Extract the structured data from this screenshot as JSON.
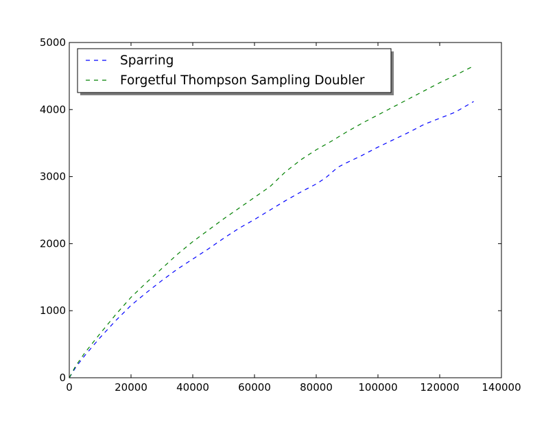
{
  "chart_data": {
    "type": "line",
    "title": "",
    "xlabel": "",
    "ylabel": "",
    "xlim": [
      0,
      140000
    ],
    "ylim": [
      0,
      5000
    ],
    "xticks": [
      0,
      20000,
      40000,
      60000,
      80000,
      100000,
      120000,
      140000
    ],
    "yticks": [
      0,
      1000,
      2000,
      3000,
      4000,
      5000
    ],
    "xtick_labels": [
      "0",
      "20000",
      "40000",
      "60000",
      "80000",
      "100000",
      "120000",
      "140000"
    ],
    "ytick_labels": [
      "0",
      "1000",
      "2000",
      "3000",
      "4000",
      "5000"
    ],
    "grid": false,
    "legend_position": "top-left",
    "line_style": "dashed",
    "series": [
      {
        "name": "Sparring",
        "color": "#0000ff",
        "x": [
          0,
          2000,
          5000,
          10000,
          15000,
          20000,
          25000,
          30000,
          35000,
          40000,
          45000,
          50000,
          55000,
          60000,
          65000,
          70000,
          75000,
          80000,
          83000,
          87000,
          90000,
          95000,
          100000,
          105000,
          110000,
          115000,
          120000,
          125000,
          131000
        ],
        "y": [
          0,
          150,
          330,
          600,
          850,
          1080,
          1270,
          1450,
          1620,
          1770,
          1920,
          2080,
          2230,
          2360,
          2500,
          2640,
          2770,
          2890,
          2980,
          3140,
          3210,
          3320,
          3440,
          3550,
          3660,
          3780,
          3870,
          3960,
          4120
        ]
      },
      {
        "name": "Forgetful Thompson Sampling Doubler",
        "color": "#008000",
        "x": [
          0,
          2000,
          5000,
          10000,
          15000,
          20000,
          25000,
          30000,
          35000,
          40000,
          45000,
          50000,
          55000,
          60000,
          65000,
          70000,
          75000,
          80000,
          85000,
          90000,
          95000,
          100000,
          105000,
          110000,
          115000,
          120000,
          125000,
          131000
        ],
        "y": [
          0,
          170,
          370,
          660,
          940,
          1200,
          1420,
          1630,
          1840,
          2030,
          2200,
          2370,
          2530,
          2690,
          2850,
          3070,
          3250,
          3400,
          3530,
          3670,
          3800,
          3920,
          4040,
          4160,
          4280,
          4400,
          4510,
          4650
        ]
      }
    ]
  }
}
